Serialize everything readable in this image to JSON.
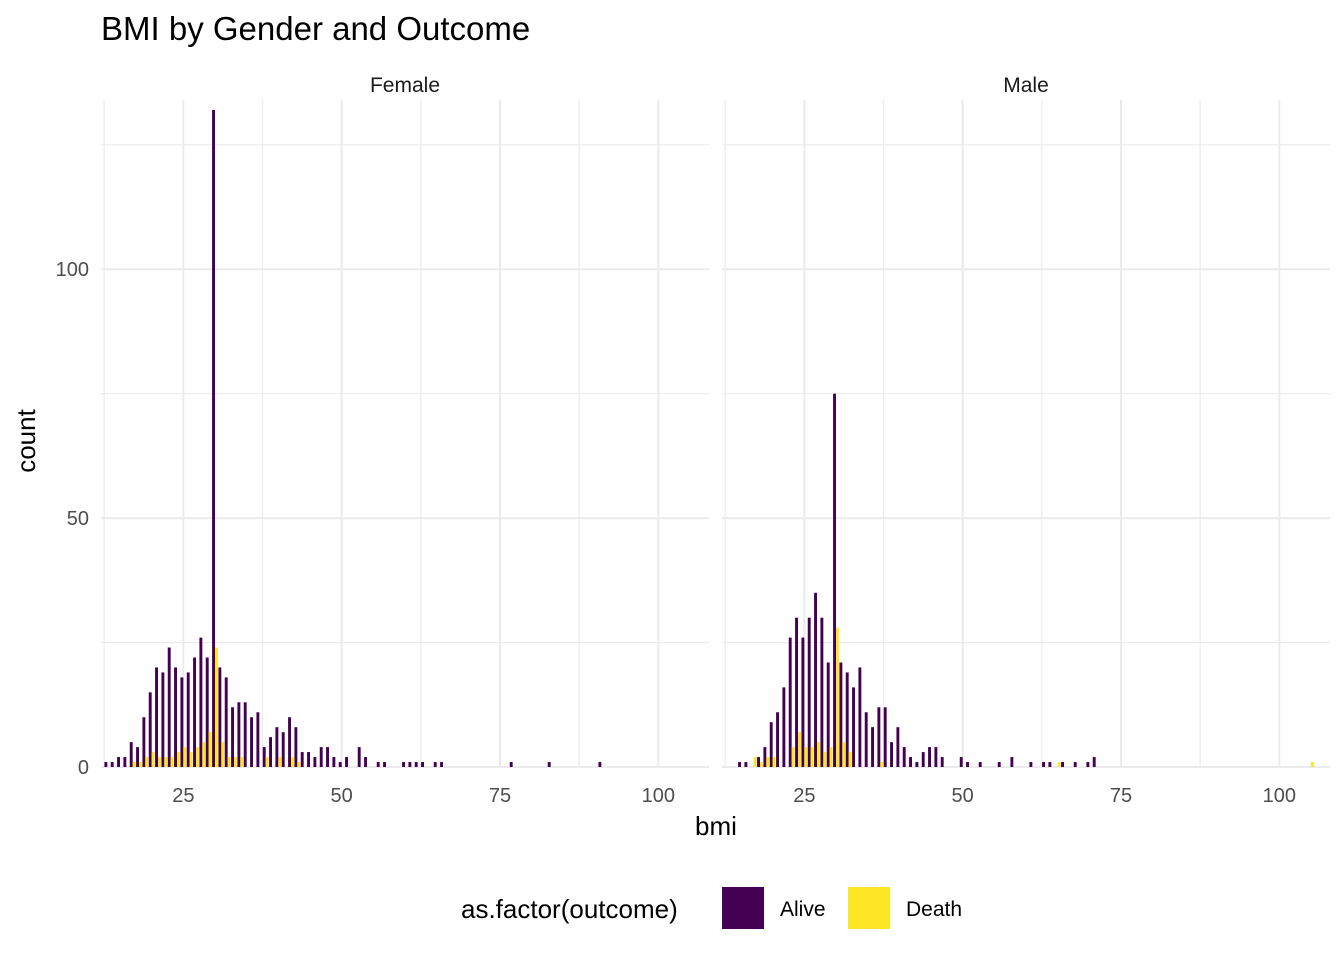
{
  "chart_data": {
    "type": "bar",
    "title": "BMI by Gender and Outcome",
    "xlabel": "bmi",
    "ylabel": "count",
    "xlim": [
      12,
      108
    ],
    "ylim": [
      0,
      134
    ],
    "x_ticks": [
      25,
      50,
      75,
      100
    ],
    "y_ticks": [
      0,
      50,
      100
    ],
    "grid": true,
    "position": "dodge",
    "legend": {
      "title": "as.factor(outcome)",
      "placement": "bottom",
      "entries": [
        {
          "name": "Alive",
          "color": "#440154"
        },
        {
          "name": "Death",
          "color": "#FDE725"
        }
      ]
    },
    "panels": [
      {
        "name": "Female",
        "series": [
          {
            "name": "Alive",
            "x": [
              13,
              14,
              15,
              16,
              17,
              18,
              19,
              20,
              21,
              22,
              23,
              24,
              25,
              26,
              27,
              28,
              29,
              30,
              31,
              32,
              33,
              34,
              35,
              36,
              37,
              38,
              39,
              40,
              41,
              42,
              43,
              44,
              45,
              46,
              47,
              48,
              49,
              50,
              51,
              53,
              54,
              56,
              57,
              60,
              61,
              62,
              63,
              65,
              66,
              77,
              83,
              91
            ],
            "y": [
              1,
              1,
              2,
              2,
              5,
              4,
              10,
              15,
              20,
              19,
              24,
              20,
              18,
              19,
              22,
              26,
              22,
              132,
              20,
              18,
              12,
              13,
              13,
              10,
              11,
              4,
              6,
              8,
              7,
              10,
              8,
              3,
              3,
              2,
              4,
              4,
              2,
              1,
              2,
              4,
              2,
              1,
              1,
              1,
              1,
              1,
              1,
              1,
              1,
              1,
              1,
              1
            ]
          },
          {
            "name": "Death",
            "x": [
              17,
              18,
              19,
              20,
              21,
              22,
              23,
              24,
              25,
              26,
              27,
              28,
              29,
              30,
              31,
              32,
              33,
              34,
              38,
              40,
              42,
              43
            ],
            "y": [
              1,
              1,
              2,
              3,
              2,
              2,
              2,
              3,
              4,
              3,
              4,
              5,
              7,
              24,
              5,
              2,
              2,
              2,
              2,
              2,
              2,
              1
            ]
          }
        ]
      },
      {
        "name": "Male",
        "series": [
          {
            "name": "Alive",
            "x": [
              15,
              16,
              18,
              19,
              20,
              21,
              22,
              23,
              24,
              25,
              26,
              27,
              28,
              29,
              30,
              31,
              32,
              33,
              34,
              35,
              36,
              37,
              38,
              39,
              40,
              41,
              42,
              43,
              44,
              45,
              46,
              47,
              50,
              51,
              53,
              56,
              58,
              61,
              63,
              64,
              66,
              68,
              70,
              71
            ],
            "y": [
              1,
              1,
              2,
              4,
              9,
              11,
              16,
              26,
              30,
              26,
              30,
              35,
              30,
              21,
              75,
              21,
              19,
              16,
              20,
              11,
              8,
              12,
              12,
              5,
              8,
              4,
              2,
              1,
              3,
              4,
              4,
              2,
              2,
              1,
              1,
              1,
              2,
              1,
              1,
              1,
              1,
              1,
              1,
              2
            ]
          },
          {
            "name": "Death",
            "x": [
              17,
              18,
              19,
              20,
              23,
              24,
              25,
              26,
              27,
              28,
              29,
              30,
              31,
              32,
              37,
              65,
              105
            ],
            "y": [
              2,
              1,
              2,
              2,
              4,
              7,
              4,
              4,
              5,
              3,
              4,
              28,
              5,
              3,
              1,
              1,
              1
            ]
          }
        ]
      }
    ]
  }
}
